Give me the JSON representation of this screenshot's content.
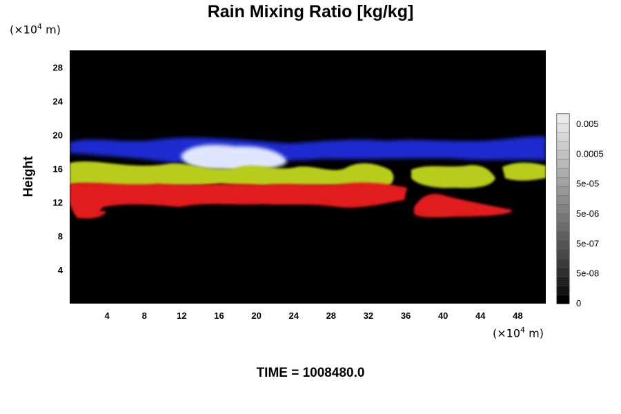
{
  "chart_data": {
    "type": "heatmap",
    "title": "Rain Mixing Ratio [kg/kg]",
    "ylabel": "Height",
    "xlabel": "",
    "y_unit_base": "(×10",
    "y_unit_exp": "4",
    "y_unit_tail": " m)",
    "x_unit_base": "(×10",
    "x_unit_exp": "4",
    "x_unit_tail": " m)",
    "x_ticks": [
      "4",
      "8",
      "12",
      "16",
      "20",
      "24",
      "28",
      "32",
      "36",
      "40",
      "44",
      "48"
    ],
    "y_ticks": [
      "4",
      "8",
      "12",
      "16",
      "20",
      "24",
      "28"
    ],
    "xlim": [
      0,
      51
    ],
    "ylim": [
      0,
      30
    ],
    "colorbar_ticks": [
      "0.005",
      "0.0005",
      "5e-05",
      "5e-06",
      "5e-07",
      "5e-08",
      "0"
    ],
    "colorbar_scale": "log",
    "background_color": "#000000",
    "layers": [
      {
        "color": "#1c2ad0",
        "description_band": "upper",
        "y_range": [
          16.5,
          19.5
        ]
      },
      {
        "color": "#e6f0ff",
        "description_band": "core",
        "y_range": [
          15.5,
          18.5
        ],
        "x_range": [
          13,
          23
        ]
      },
      {
        "color": "#b4c81e",
        "description_band": "middle",
        "y_range": [
          13.5,
          17.5
        ]
      },
      {
        "color": "#e61e1e",
        "description_band": "lower",
        "y_range": [
          10,
          14
        ]
      }
    ]
  },
  "footer": {
    "label": "TIME = ",
    "value": "1008480.0"
  }
}
